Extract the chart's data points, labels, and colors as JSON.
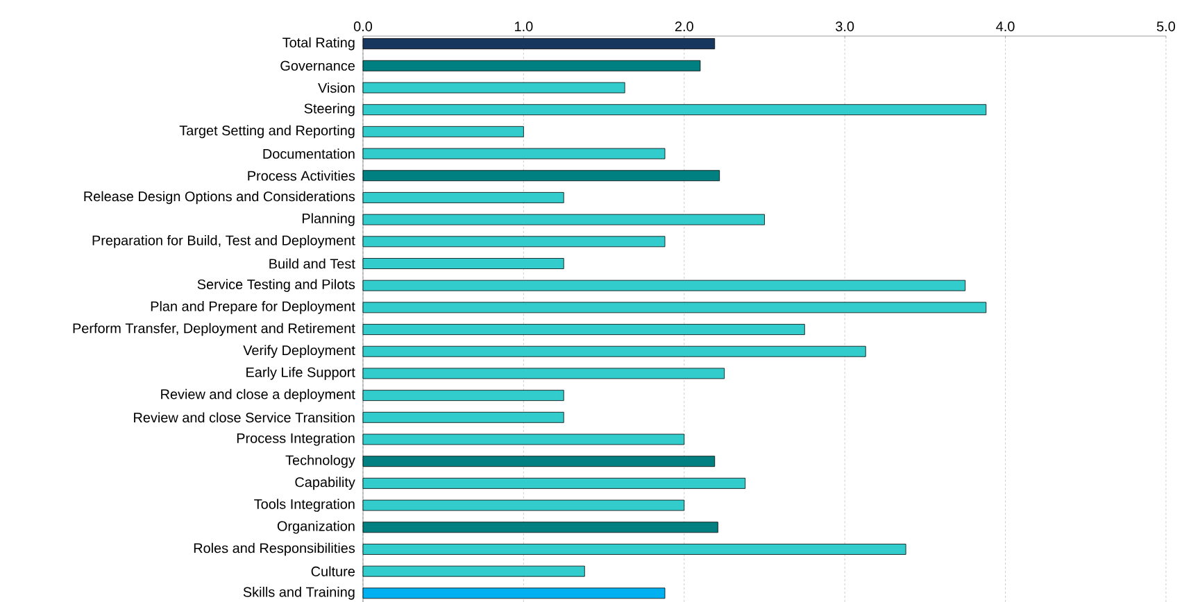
{
  "chart_data": {
    "type": "bar",
    "orientation": "horizontal",
    "grid": "x",
    "categories": [
      "Total Rating",
      "Governance",
      "Vision",
      "Steering",
      "Target Setting and Reporting",
      "Documentation",
      "Process Activities",
      "Release Design Options and Considerations",
      "Planning",
      "Preparation for Build, Test and Deployment",
      "Build and Test",
      "Service Testing and Pilots",
      "Plan and Prepare for Deployment",
      "Perform Transfer, Deployment and Retirement",
      "Verify Deployment",
      "Early Life Support",
      "Review and close a deployment",
      "Review and close Service Transition",
      "Process Integration",
      "Technology",
      "Capability",
      "Tools Integration",
      "Organization",
      "Roles and Responsibilities",
      "Culture",
      "Skills and Training"
    ],
    "values": [
      2.19,
      2.1,
      1.63,
      3.88,
      1.0,
      1.88,
      2.22,
      1.25,
      2.5,
      1.88,
      1.25,
      3.75,
      3.88,
      2.75,
      3.13,
      2.25,
      1.25,
      1.25,
      2.0,
      2.19,
      2.38,
      2.0,
      2.21,
      3.38,
      1.38,
      1.88
    ],
    "colors": [
      "#17375e",
      "#008080",
      "#33cccc",
      "#33cccc",
      "#33cccc",
      "#33cccc",
      "#008080",
      "#33cccc",
      "#33cccc",
      "#33cccc",
      "#33cccc",
      "#33cccc",
      "#33cccc",
      "#33cccc",
      "#33cccc",
      "#33cccc",
      "#33cccc",
      "#33cccc",
      "#33cccc",
      "#008080",
      "#33cccc",
      "#33cccc",
      "#008080",
      "#33cccc",
      "#33cccc",
      "#00b0f0"
    ],
    "xlim": [
      0,
      5
    ],
    "xticks": [
      {
        "value": 0,
        "label": "0.0"
      },
      {
        "value": 1,
        "label": "1.0"
      },
      {
        "value": 2,
        "label": "2.0"
      },
      {
        "value": 3,
        "label": "3.0"
      },
      {
        "value": 4,
        "label": "4.0"
      },
      {
        "value": 5,
        "label": "5.0"
      }
    ]
  }
}
